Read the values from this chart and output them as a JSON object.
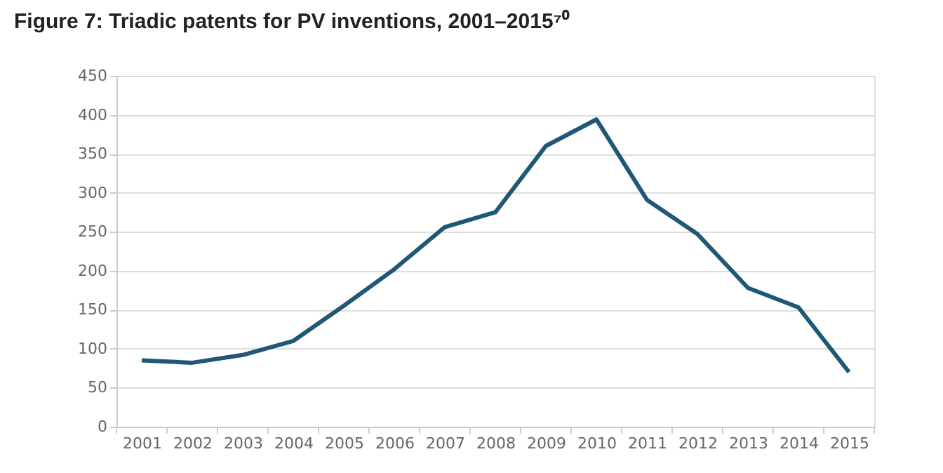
{
  "chart_data": {
    "type": "line",
    "title": "Figure 7: Triadic patents for PV inventions, 2001–2015⁷⁰",
    "categories": [
      "2001",
      "2002",
      "2003",
      "2004",
      "2005",
      "2006",
      "2007",
      "2008",
      "2009",
      "2010",
      "2011",
      "2012",
      "2013",
      "2014",
      "2015"
    ],
    "series": [
      {
        "color": "#1f5777",
        "values": [
          85,
          82,
          92,
          110,
          155,
          202,
          256,
          275,
          360,
          394,
          291,
          247,
          178,
          153,
          70
        ]
      }
    ],
    "ylim": [
      0,
      450
    ],
    "yticks": [
      0,
      50,
      100,
      150,
      200,
      250,
      300,
      350,
      400,
      450
    ],
    "grid": "y",
    "marker": "none",
    "line_style": "solid"
  }
}
